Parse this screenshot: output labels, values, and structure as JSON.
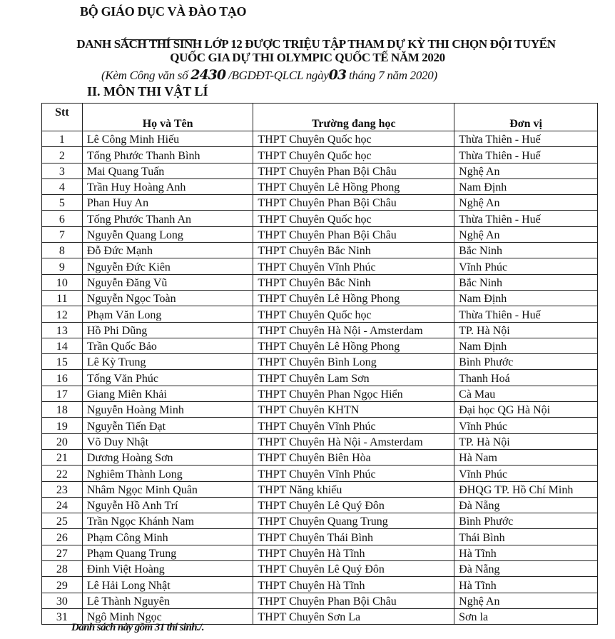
{
  "header": {
    "ministry": "BỘ GIÁO DỤC VÀ ĐÀO TẠO",
    "title_line1": "DANH SÁCH THÍ SINH LỚP 12 ĐƯỢC TRIỆU TẬP THAM DỰ KỲ THI CHỌN ĐỘI TUYỂN",
    "title_line2": "QUỐC GIA DỰ THI OLYMPIC QUỐC TẾ NĂM 2020",
    "subtitle_prefix": "(Kèm Công văn số ",
    "doc_number_handwritten": "2430",
    "subtitle_middle": " /BGDĐT-QLCL ngày",
    "day_handwritten": "03",
    "subtitle_suffix": " tháng 7 năm 2020)",
    "section": "II. MÔN THI VẬT LÍ"
  },
  "table": {
    "columns": [
      "Stt",
      "Họ và Tên",
      "Trường đang học",
      "Đơn vị"
    ],
    "rows": [
      [
        "1",
        "Lê Công Minh Hiếu",
        "THPT Chuyên Quốc học",
        "Thừa Thiên - Huế"
      ],
      [
        "2",
        "Tống Phước Thanh Bình",
        "THPT Chuyên Quốc học",
        "Thừa Thiên - Huế"
      ],
      [
        "3",
        "Mai Quang Tuấn",
        "THPT Chuyên Phan Bội Châu",
        "Nghệ An"
      ],
      [
        "4",
        "Trần Huy Hoàng Anh",
        "THPT Chuyên Lê Hồng Phong",
        "Nam Định"
      ],
      [
        "5",
        "Phan Huy An",
        "THPT Chuyên Phan Bội Châu",
        "Nghệ An"
      ],
      [
        "6",
        "Tống Phước Thanh An",
        "THPT Chuyên Quốc học",
        "Thừa Thiên - Huế"
      ],
      [
        "7",
        "Nguyễn Quang Long",
        "THPT Chuyên Phan Bội Châu",
        "Nghệ An"
      ],
      [
        "8",
        "Đỗ Đức Mạnh",
        "THPT Chuyên Bắc Ninh",
        "Bắc Ninh"
      ],
      [
        "9",
        "Nguyễn Đức Kiên",
        "THPT Chuyên Vĩnh Phúc",
        "Vĩnh Phúc"
      ],
      [
        "10",
        "Nguyễn Đăng Vũ",
        "THPT Chuyên Bắc Ninh",
        "Bắc Ninh"
      ],
      [
        "11",
        "Nguyễn Ngọc Toàn",
        "THPT Chuyên Lê Hồng Phong",
        "Nam Định"
      ],
      [
        "12",
        "Phạm Văn Long",
        "THPT Chuyên Quốc học",
        "Thừa Thiên - Huế"
      ],
      [
        "13",
        "Hồ Phi Dũng",
        "THPT Chuyên Hà Nội - Amsterdam",
        "TP. Hà Nội"
      ],
      [
        "14",
        "Trần Quốc Bảo",
        "THPT Chuyên Lê Hồng Phong",
        "Nam Định"
      ],
      [
        "15",
        "Lê Kỳ Trung",
        "THPT Chuyên Bình Long",
        "Bình Phước"
      ],
      [
        "16",
        "Tống Văn Phúc",
        "THPT Chuyên Lam Sơn",
        "Thanh Hoá"
      ],
      [
        "17",
        "Giang Miên Khải",
        "THPT Chuyên Phan Ngọc Hiển",
        "Cà Mau"
      ],
      [
        "18",
        "Nguyễn Hoàng Minh",
        "THPT Chuyên KHTN",
        "Đại học QG Hà Nội"
      ],
      [
        "19",
        "Nguyễn Tiến Đạt",
        "THPT Chuyên Vĩnh Phúc",
        "Vĩnh Phúc"
      ],
      [
        "20",
        "Võ Duy Nhật",
        "THPT Chuyên Hà Nội - Amsterdam",
        "TP. Hà Nội"
      ],
      [
        "21",
        "Dương Hoàng Sơn",
        "THPT Chuyên Biên Hòa",
        "Hà Nam"
      ],
      [
        "22",
        "Nghiêm Thành Long",
        "THPT Chuyên Vĩnh Phúc",
        "Vĩnh Phúc"
      ],
      [
        "23",
        "Nhâm Ngọc Minh Quân",
        "THPT Năng khiếu",
        "ĐHQG TP. Hồ Chí Minh"
      ],
      [
        "24",
        "Nguyễn Hồ Anh Trí",
        "THPT Chuyên Lê Quý Đôn",
        "Đà Nẵng"
      ],
      [
        "25",
        "Trần Ngọc Khánh Nam",
        "THPT Chuyên Quang Trung",
        "Bình Phước"
      ],
      [
        "26",
        "Phạm Công Minh",
        "THPT Chuyên Thái Bình",
        "Thái Bình"
      ],
      [
        "27",
        "Phạm Quang Trung",
        "THPT Chuyên Hà Tĩnh",
        "Hà Tĩnh"
      ],
      [
        "28",
        "Đinh Việt Hoàng",
        "THPT Chuyên Lê Quý Đôn",
        "Đà Nẵng"
      ],
      [
        "29",
        "Lê Hải Long Nhật",
        "THPT Chuyên Hà Tĩnh",
        "Hà Tĩnh"
      ],
      [
        "30",
        "Lê Thành Nguyên",
        "THPT Chuyên Phan Bội Châu",
        "Nghệ An"
      ],
      [
        "31",
        "Ngô Minh Ngọc",
        "THPT Chuyên Sơn La",
        "Sơn la"
      ]
    ]
  },
  "footer": "Danh sách này gồm 31 thí sinh./."
}
